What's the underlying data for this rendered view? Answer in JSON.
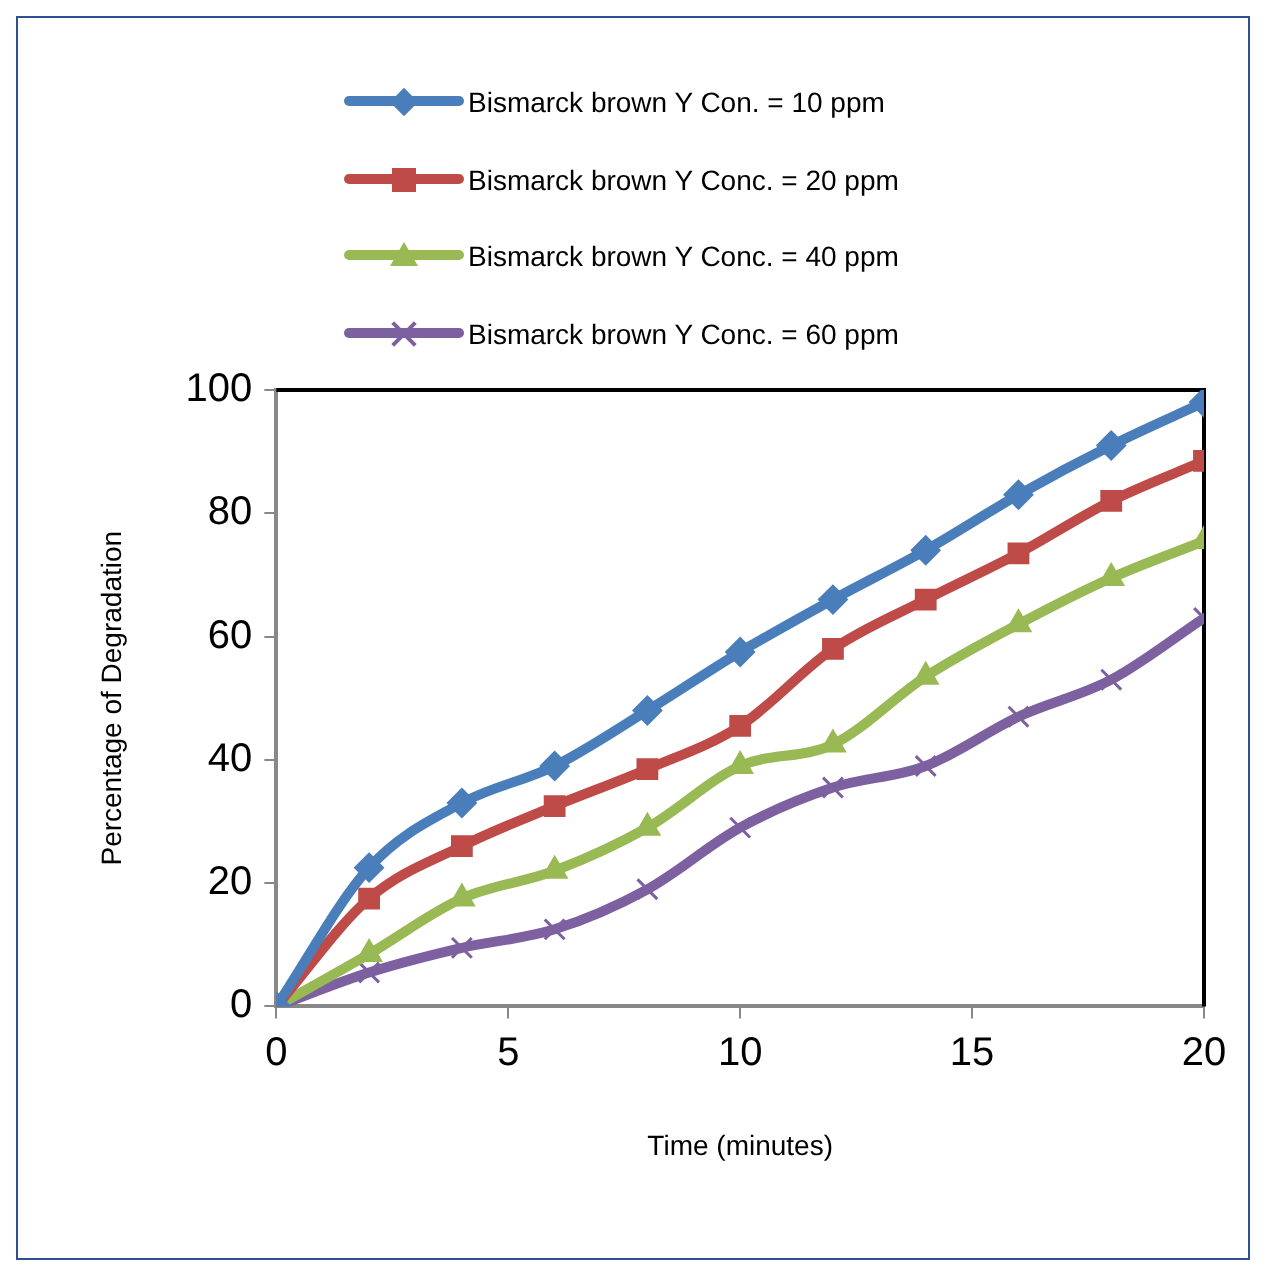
{
  "chart_data": {
    "type": "line",
    "xlabel": "Time (minutes)",
    "ylabel": "Percentage of Degradation",
    "x": [
      0,
      2,
      4,
      6,
      8,
      10,
      12,
      14,
      16,
      18,
      20
    ],
    "xlim": [
      0,
      20
    ],
    "xticks": [
      0,
      5,
      10,
      15,
      20
    ],
    "ylim": [
      0,
      100
    ],
    "yticks": [
      0,
      20,
      40,
      60,
      80,
      100
    ],
    "grid": false,
    "legend": "top",
    "series": [
      {
        "name": "Bismarck brown Y Con. = 10 ppm",
        "color": "#4a7ebb",
        "marker": "diamond",
        "values": [
          0,
          22.5,
          33,
          39,
          48,
          57.5,
          66,
          74,
          83,
          91,
          98
        ]
      },
      {
        "name": "Bismarck brown Y Conc. = 20 ppm",
        "color": "#be4b48",
        "marker": "square",
        "values": [
          0,
          17.5,
          26,
          32.5,
          38.5,
          45.5,
          58,
          66,
          73.5,
          82,
          88.5
        ]
      },
      {
        "name": "Bismarck brown Y Conc. = 40 ppm",
        "color": "#98b954",
        "marker": "triangle",
        "values": [
          0,
          8.5,
          17.5,
          22,
          29,
          39,
          42.5,
          53.5,
          62,
          69.5,
          75.5
        ]
      },
      {
        "name": "Bismarck brown Y Conc. = 60 ppm",
        "color": "#7d60a0",
        "marker": "cross",
        "values": [
          0,
          5.5,
          9.5,
          12.5,
          19,
          29,
          35.5,
          39,
          47,
          53,
          63
        ]
      }
    ]
  }
}
